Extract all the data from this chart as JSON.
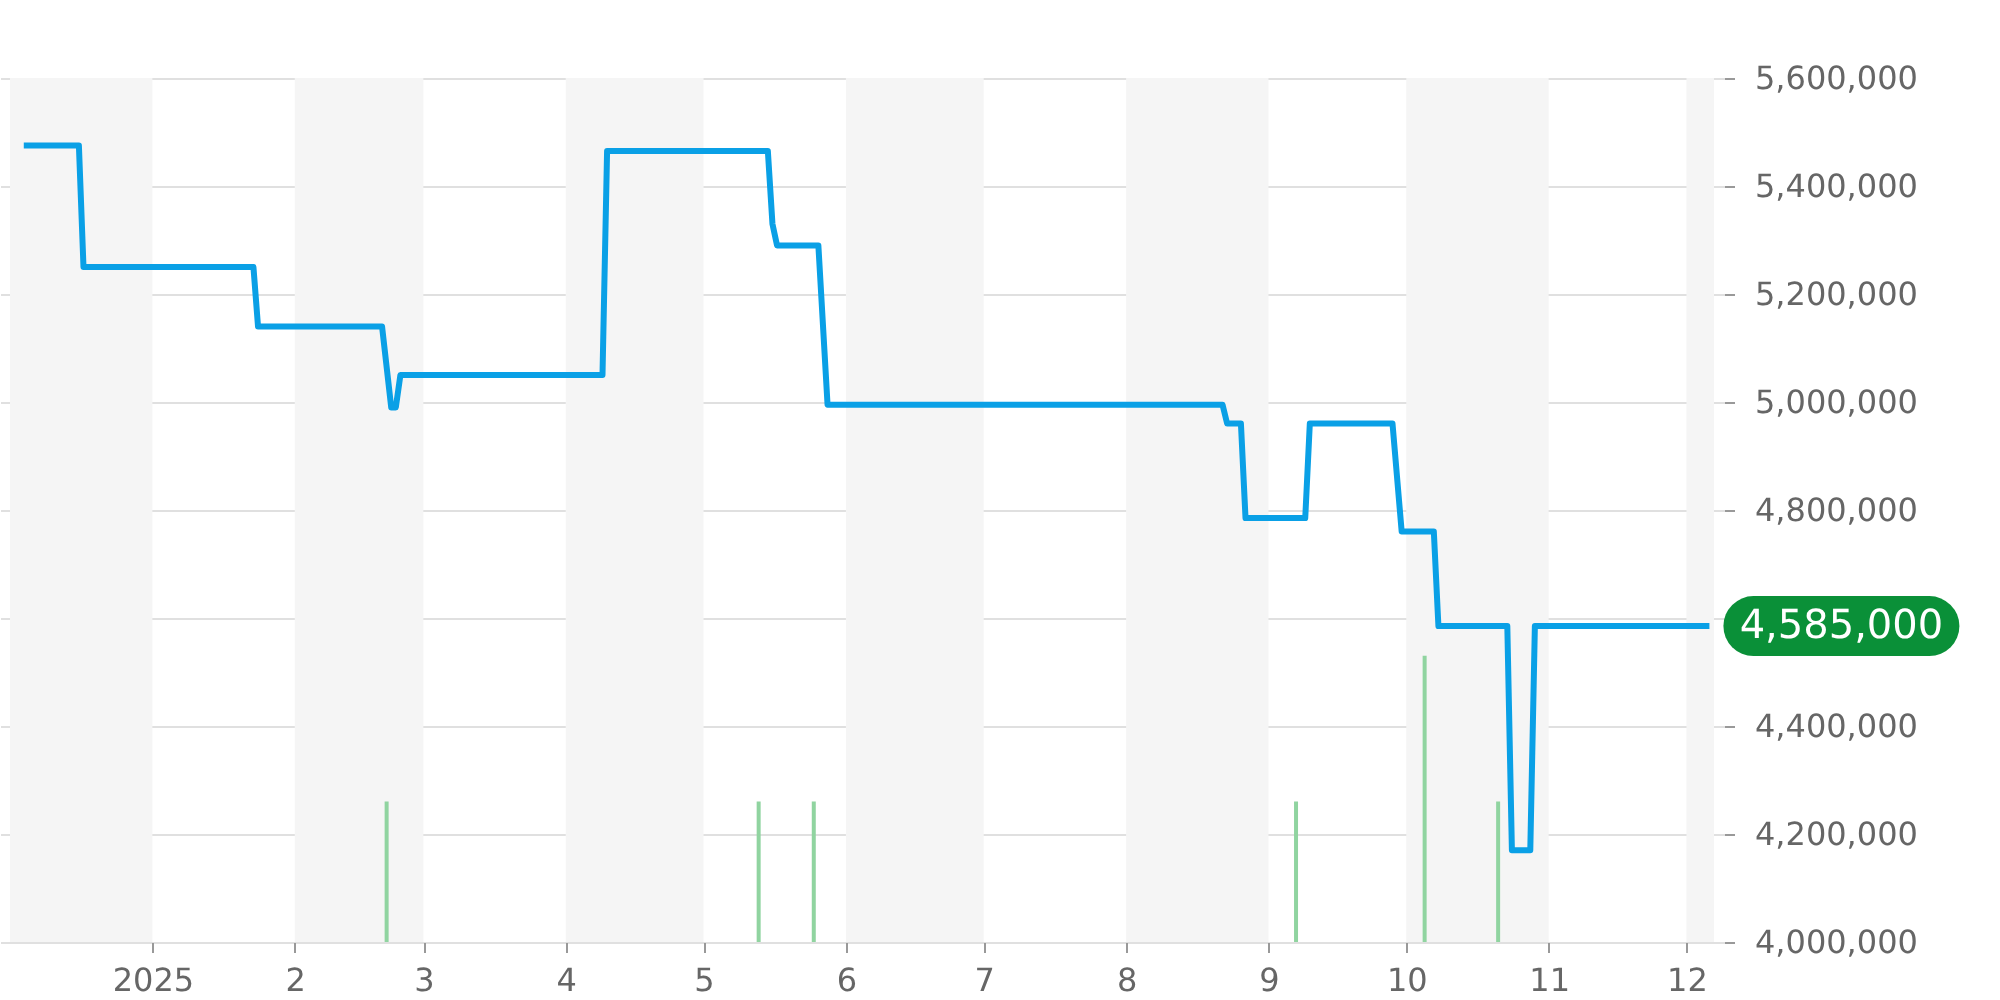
{
  "chart_data": {
    "type": "line",
    "series": [
      {
        "color": "#0aa0e6",
        "x": [
          "2024-12-04",
          "2024-12-16",
          "2024-12-17",
          "2025-01-23",
          "2025-01-24",
          "2025-02-20",
          "2025-02-22",
          "2025-02-23",
          "2025-02-24",
          "2025-04-09",
          "2025-04-10",
          "2025-05-15",
          "2025-05-16",
          "2025-05-17",
          "2025-05-26",
          "2025-05-28",
          "2025-08-22",
          "2025-08-23",
          "2025-08-26",
          "2025-08-27",
          "2025-09-09",
          "2025-09-10",
          "2025-09-28",
          "2025-09-30",
          "2025-10-07",
          "2025-10-08",
          "2025-10-23",
          "2025-10-24",
          "2025-10-28",
          "2025-10-29",
          "2025-12-06"
        ],
        "values": [
          5475000,
          5475000,
          5250000,
          5250000,
          5140000,
          5140000,
          4990000,
          4990000,
          5050000,
          5050000,
          5465000,
          5465000,
          5330000,
          5290000,
          5290000,
          4995000,
          4995000,
          4960000,
          4960000,
          4785000,
          4785000,
          4960000,
          4960000,
          4760000,
          4760000,
          4585000,
          4585000,
          4170000,
          4170000,
          4585000,
          4585000
        ]
      },
      {
        "type": "bar",
        "color": "#90d4a0",
        "x": [
          "2025-02-21",
          "2025-05-13",
          "2025-05-25",
          "2025-09-07",
          "2025-10-05",
          "2025-10-21"
        ],
        "base": [
          4000000,
          4000000,
          4000000,
          4000000,
          4000000,
          4000000
        ],
        "values": [
          260000,
          260000,
          260000,
          260000,
          530000,
          260000
        ]
      }
    ],
    "xlim": [
      "2024-12-01",
      "2025-12-07"
    ],
    "xticks": [
      {
        "value": "2025-01-01",
        "label": "2025"
      },
      {
        "value": "2025-02-01",
        "label": "2"
      },
      {
        "value": "2025-03-01",
        "label": "3"
      },
      {
        "value": "2025-04-01",
        "label": "4"
      },
      {
        "value": "2025-05-01",
        "label": "5"
      },
      {
        "value": "2025-06-01",
        "label": "6"
      },
      {
        "value": "2025-07-01",
        "label": "7"
      },
      {
        "value": "2025-08-01",
        "label": "8"
      },
      {
        "value": "2025-09-01",
        "label": "9"
      },
      {
        "value": "2025-10-01",
        "label": "10"
      },
      {
        "value": "2025-11-01",
        "label": "11"
      },
      {
        "value": "2025-12-01",
        "label": "12"
      }
    ],
    "ylim": [
      4000000,
      5600000
    ],
    "yticks": [
      {
        "value": 4000000,
        "label": "4,000,000"
      },
      {
        "value": 4200000,
        "label": "4,200,000"
      },
      {
        "value": 4400000,
        "label": "4,400,000"
      },
      {
        "value": 4600000,
        "label": null
      },
      {
        "value": 4800000,
        "label": "4,800,000"
      },
      {
        "value": 5000000,
        "label": "5,000,000"
      },
      {
        "value": 5200000,
        "label": "5,200,000"
      },
      {
        "value": 5400000,
        "label": "5,400,000"
      },
      {
        "value": 5600000,
        "label": "5,600,000"
      }
    ],
    "grid": "y",
    "bands": [
      {
        "axis": "x",
        "from": "2024-12-01",
        "to": "2025-01-01",
        "color": "#f5f5f5"
      },
      {
        "axis": "x",
        "from": "2025-02-01",
        "to": "2025-03-01",
        "color": "#f5f5f5"
      },
      {
        "axis": "x",
        "from": "2025-04-01",
        "to": "2025-05-01",
        "color": "#f5f5f5"
      },
      {
        "axis": "x",
        "from": "2025-06-01",
        "to": "2025-07-01",
        "color": "#f5f5f5"
      },
      {
        "axis": "x",
        "from": "2025-08-01",
        "to": "2025-09-01",
        "color": "#f5f5f5"
      },
      {
        "axis": "x",
        "from": "2025-10-01",
        "to": "2025-11-01",
        "color": "#f5f5f5"
      },
      {
        "axis": "x",
        "from": "2025-12-01",
        "to": "2025-12-07",
        "color": "#f5f5f5"
      }
    ],
    "annotations": [
      {
        "text": "4,585,000",
        "x": "2025-12-06",
        "y": 4585000
      }
    ],
    "line_style": "solid",
    "marker": "none"
  }
}
